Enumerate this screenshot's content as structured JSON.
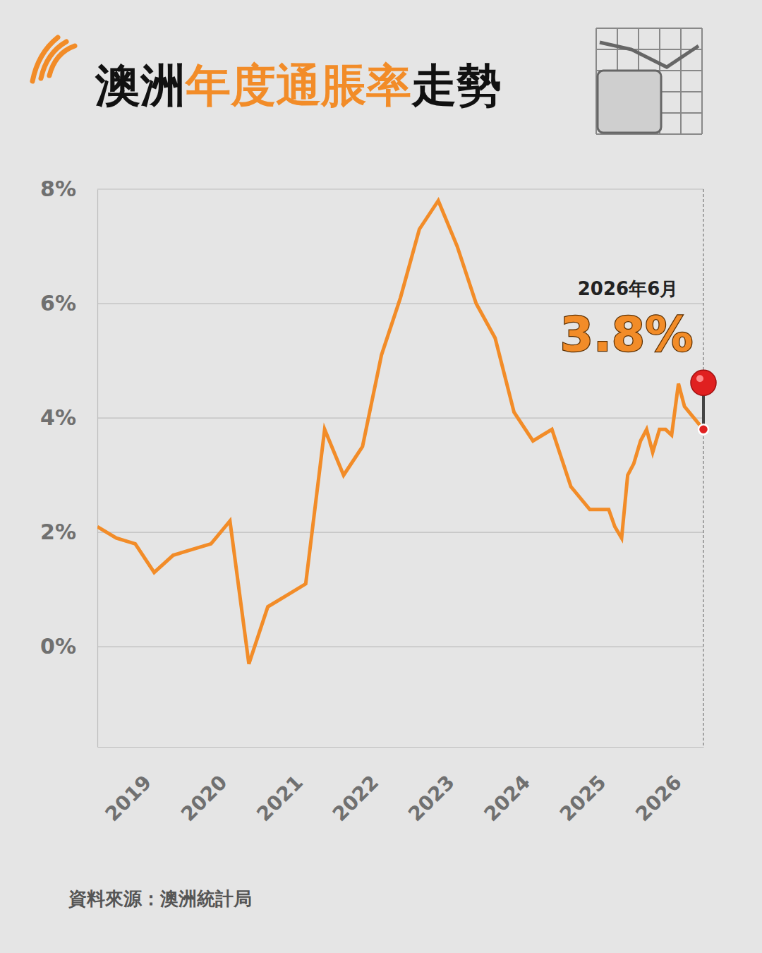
{
  "chart_data": {
    "type": "line",
    "title": "澳洲年度通脹率走勢",
    "x": [
      2018.5,
      2018.75,
      2019,
      2019.25,
      2019.5,
      2019.75,
      2020,
      2020.25,
      2020.5,
      2020.75,
      2021,
      2021.25,
      2021.5,
      2021.75,
      2022,
      2022.25,
      2022.5,
      2022.75,
      2023,
      2023.25,
      2023.5,
      2023.75,
      2024,
      2024.25,
      2024.5,
      2024.75,
      2025,
      2025.25,
      2025.33,
      2025.42,
      2025.5,
      2025.58,
      2025.67,
      2025.75,
      2025.83,
      2025.92,
      2026,
      2026.08,
      2026.17,
      2026.25,
      2026.5
    ],
    "values": [
      2.1,
      1.9,
      1.8,
      1.3,
      1.6,
      1.7,
      1.8,
      2.2,
      -0.3,
      0.7,
      0.9,
      1.1,
      3.8,
      3.0,
      3.5,
      5.1,
      6.1,
      7.3,
      7.8,
      7.0,
      6.0,
      5.4,
      4.1,
      3.6,
      3.8,
      2.8,
      2.4,
      2.4,
      2.1,
      1.9,
      3.0,
      3.2,
      3.6,
      3.8,
      3.4,
      3.8,
      3.8,
      3.7,
      4.6,
      4.2,
      3.8
    ],
    "color": "#f28c28",
    "xlim": [
      2018.5,
      2026.5
    ],
    "xticks": [
      2019,
      2020,
      2021,
      2022,
      2023,
      2024,
      2025,
      2026
    ],
    "ylim": [
      -1.75,
      8
    ],
    "yticks": [
      {
        "value": 0,
        "label": "0%"
      },
      {
        "value": 2,
        "label": "2%"
      },
      {
        "value": 4,
        "label": "4%"
      },
      {
        "value": 6,
        "label": "6%"
      },
      {
        "value": 8,
        "label": "8%"
      }
    ],
    "grid": true,
    "annotations": [
      {
        "text": "2026年6月"
      },
      {
        "text": "3.8%"
      }
    ],
    "source": "資料來源：澳洲統計局"
  }
}
